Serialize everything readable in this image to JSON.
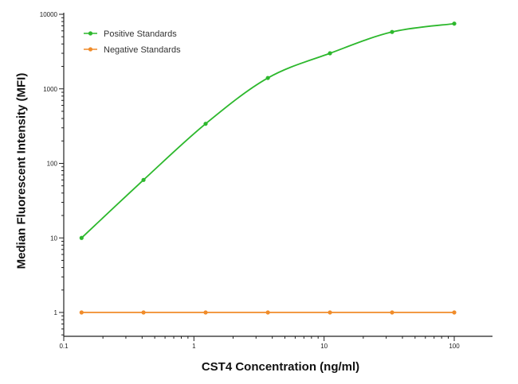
{
  "chart_data": {
    "type": "line",
    "xlabel": "CST4 Concentration (ng/ml)",
    "ylabel": "Median  Fluorescent Intensity  (MFI)",
    "x_scale": "log",
    "y_scale": "log",
    "xlim": [
      0.1,
      100
    ],
    "ylim": [
      1,
      10000
    ],
    "x_ticks": [
      "0.1",
      "1",
      "10",
      "100"
    ],
    "y_ticks": [
      "1",
      "10",
      "100",
      "1000",
      "10000"
    ],
    "legend_position": "top-left",
    "x": [
      0.137,
      0.41,
      1.23,
      3.7,
      11.1,
      33.3,
      100
    ],
    "series": [
      {
        "name": "Positive Standards",
        "color": "#2db82d",
        "marker": "circle",
        "values": [
          10,
          60,
          340,
          1400,
          3000,
          5800,
          7500
        ]
      },
      {
        "name": "Negative Standards",
        "color": "#f08c2a",
        "marker": "circle",
        "values": [
          1,
          1,
          1,
          1,
          1,
          1,
          1
        ]
      }
    ]
  }
}
